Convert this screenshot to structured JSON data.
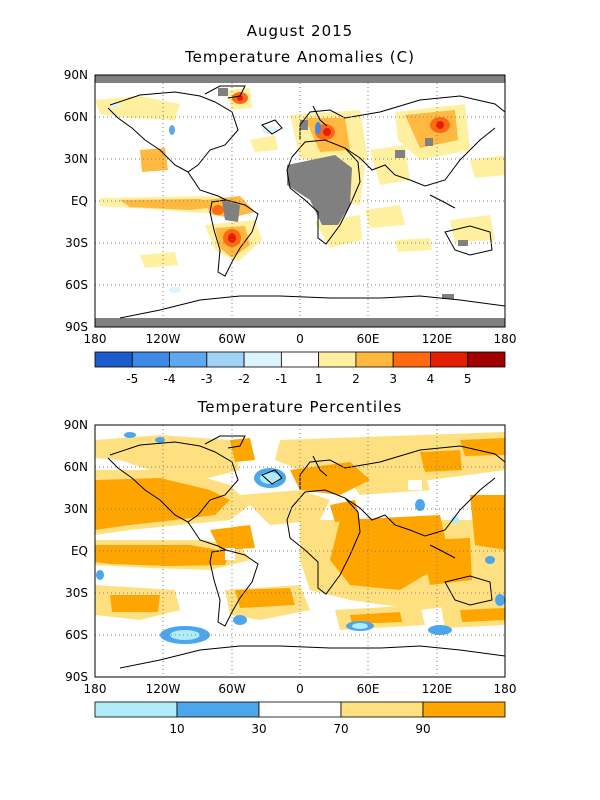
{
  "title_line1": "August 2015",
  "map1": {
    "title": "Temperature Anomalies (C)",
    "lat_labels": [
      "90N",
      "60N",
      "30N",
      "EQ",
      "30S",
      "60S",
      "90S"
    ],
    "lon_labels": [
      "180",
      "120W",
      "60W",
      "0",
      "60E",
      "120E",
      "180"
    ],
    "legend": {
      "colors": [
        "#1e5ccc",
        "#3c8ae6",
        "#5fa8f0",
        "#9ed3f5",
        "#dcf4fb",
        "#ffffff",
        "#fff0a0",
        "#ffb840",
        "#ff6a10",
        "#e61e00",
        "#a00000"
      ],
      "labels": [
        "-5",
        "-4",
        "-3",
        "-2",
        "-1",
        "1",
        "2",
        "3",
        "4",
        "5"
      ]
    }
  },
  "map2": {
    "title": "Temperature Percentiles",
    "lat_labels": [
      "90N",
      "60N",
      "30N",
      "EQ",
      "30S",
      "60S",
      "90S"
    ],
    "lon_labels": [
      "180",
      "120W",
      "60W",
      "0",
      "60E",
      "120E",
      "180"
    ],
    "legend": {
      "colors": [
        "#b0ecf8",
        "#4ca6ec",
        "#ffffff",
        "#ffe080",
        "#ffa500"
      ],
      "labels": [
        "10",
        "30",
        "70",
        "90"
      ]
    }
  }
}
